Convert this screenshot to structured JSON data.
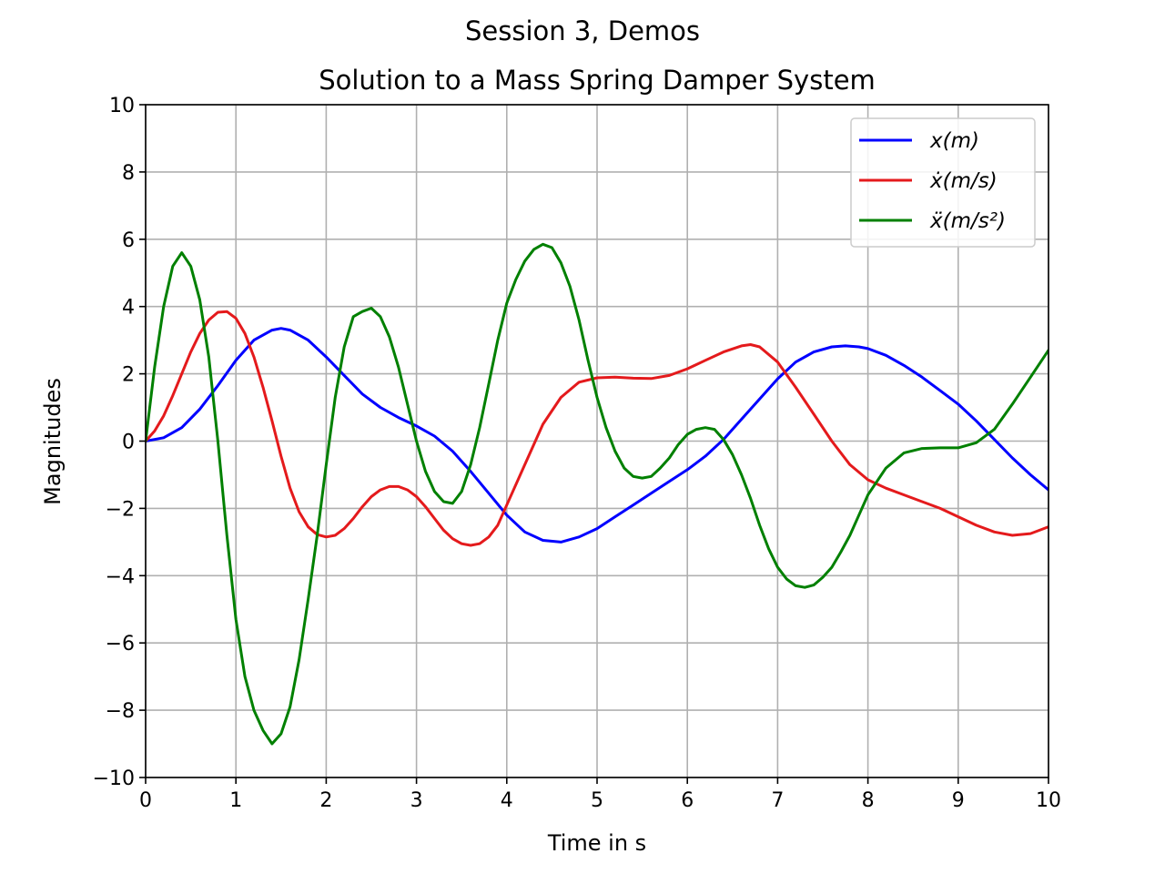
{
  "chart_data": {
    "type": "line",
    "suptitle": "Session 3, Demos",
    "title": "Solution to a Mass Spring Damper System",
    "xlabel": "Time in s",
    "ylabel": "Magnitudes",
    "xlim": [
      0,
      10
    ],
    "ylim": [
      -10,
      10
    ],
    "xticks": [
      0,
      1,
      2,
      3,
      4,
      5,
      6,
      7,
      8,
      9,
      10
    ],
    "yticks": [
      -10,
      -8,
      -6,
      -4,
      -2,
      0,
      2,
      4,
      6,
      8,
      10
    ],
    "xtick_labels": [
      "0",
      "1",
      "2",
      "3",
      "4",
      "5",
      "6",
      "7",
      "8",
      "9",
      "10"
    ],
    "ytick_labels": [
      "−10",
      "−8",
      "−6",
      "−4",
      "−2",
      "0",
      "2",
      "4",
      "6",
      "8",
      "10"
    ],
    "grid": true,
    "legend": {
      "position": "top-right"
    },
    "series": [
      {
        "name": "x(m)",
        "color": "#0000ff",
        "x": [
          0,
          0.2,
          0.4,
          0.6,
          0.8,
          1.0,
          1.2,
          1.4,
          1.5,
          1.6,
          1.8,
          2.0,
          2.2,
          2.4,
          2.6,
          2.8,
          3.0,
          3.2,
          3.4,
          3.6,
          3.8,
          4.0,
          4.2,
          4.4,
          4.6,
          4.8,
          5.0,
          5.2,
          5.4,
          5.6,
          5.8,
          6.0,
          6.2,
          6.4,
          6.6,
          6.8,
          7.0,
          7.2,
          7.4,
          7.6,
          7.75,
          7.9,
          8.0,
          8.2,
          8.4,
          8.6,
          8.8,
          9.0,
          9.2,
          9.4,
          9.6,
          9.8,
          10.0
        ],
        "y": [
          0,
          0.1,
          0.4,
          0.95,
          1.65,
          2.4,
          3.0,
          3.3,
          3.35,
          3.3,
          3.0,
          2.5,
          1.95,
          1.4,
          1.0,
          0.7,
          0.45,
          0.15,
          -0.3,
          -0.9,
          -1.55,
          -2.2,
          -2.7,
          -2.95,
          -3.0,
          -2.85,
          -2.6,
          -2.25,
          -1.9,
          -1.55,
          -1.2,
          -0.85,
          -0.45,
          0.05,
          0.65,
          1.25,
          1.85,
          2.35,
          2.65,
          2.8,
          2.83,
          2.8,
          2.75,
          2.55,
          2.25,
          1.9,
          1.5,
          1.1,
          0.6,
          0.05,
          -0.5,
          -1.0,
          -1.45
        ]
      },
      {
        "name": "ẋ(m/s)",
        "color": "#e41a1c",
        "x": [
          0,
          0.1,
          0.2,
          0.3,
          0.4,
          0.5,
          0.6,
          0.7,
          0.8,
          0.9,
          1.0,
          1.1,
          1.2,
          1.3,
          1.4,
          1.5,
          1.6,
          1.7,
          1.8,
          1.9,
          2.0,
          2.1,
          2.2,
          2.3,
          2.4,
          2.5,
          2.6,
          2.7,
          2.8,
          2.9,
          3.0,
          3.1,
          3.2,
          3.3,
          3.4,
          3.5,
          3.6,
          3.7,
          3.8,
          3.9,
          4.0,
          4.2,
          4.4,
          4.6,
          4.8,
          5.0,
          5.2,
          5.4,
          5.6,
          5.8,
          6.0,
          6.2,
          6.4,
          6.6,
          6.7,
          6.8,
          7.0,
          7.2,
          7.4,
          7.6,
          7.8,
          8.0,
          8.2,
          8.4,
          8.6,
          8.8,
          9.0,
          9.2,
          9.4,
          9.6,
          9.8,
          10.0
        ],
        "y": [
          0,
          0.3,
          0.75,
          1.35,
          2.0,
          2.65,
          3.2,
          3.6,
          3.83,
          3.85,
          3.65,
          3.2,
          2.5,
          1.6,
          0.6,
          -0.45,
          -1.4,
          -2.1,
          -2.55,
          -2.78,
          -2.85,
          -2.8,
          -2.6,
          -2.3,
          -1.95,
          -1.65,
          -1.45,
          -1.35,
          -1.35,
          -1.45,
          -1.65,
          -1.95,
          -2.3,
          -2.65,
          -2.9,
          -3.05,
          -3.1,
          -3.05,
          -2.85,
          -2.5,
          -1.9,
          -0.7,
          0.5,
          1.3,
          1.75,
          1.88,
          1.9,
          1.87,
          1.86,
          1.95,
          2.15,
          2.4,
          2.65,
          2.83,
          2.87,
          2.8,
          2.35,
          1.6,
          0.8,
          0.0,
          -0.7,
          -1.15,
          -1.4,
          -1.6,
          -1.8,
          -2.0,
          -2.25,
          -2.5,
          -2.7,
          -2.8,
          -2.75,
          -2.55
        ]
      },
      {
        "name": "ẍ(m/s²)",
        "color": "#008000",
        "x": [
          0,
          0.1,
          0.2,
          0.3,
          0.4,
          0.5,
          0.6,
          0.7,
          0.8,
          0.9,
          1.0,
          1.1,
          1.2,
          1.3,
          1.4,
          1.5,
          1.6,
          1.7,
          1.8,
          1.9,
          2.0,
          2.1,
          2.2,
          2.3,
          2.4,
          2.5,
          2.6,
          2.7,
          2.8,
          2.9,
          3.0,
          3.1,
          3.2,
          3.3,
          3.4,
          3.5,
          3.6,
          3.7,
          3.8,
          3.9,
          4.0,
          4.1,
          4.2,
          4.3,
          4.4,
          4.5,
          4.6,
          4.7,
          4.8,
          4.9,
          5.0,
          5.1,
          5.2,
          5.3,
          5.4,
          5.5,
          5.6,
          5.7,
          5.8,
          5.9,
          6.0,
          6.1,
          6.2,
          6.3,
          6.4,
          6.5,
          6.6,
          6.7,
          6.8,
          6.9,
          7.0,
          7.1,
          7.2,
          7.3,
          7.4,
          7.5,
          7.6,
          7.7,
          7.8,
          7.9,
          8.0,
          8.2,
          8.4,
          8.6,
          8.8,
          9.0,
          9.2,
          9.4,
          9.6,
          9.8,
          10.0
        ],
        "y": [
          0,
          2.2,
          4.0,
          5.2,
          5.6,
          5.2,
          4.2,
          2.5,
          0.0,
          -2.8,
          -5.3,
          -7.0,
          -8.0,
          -8.6,
          -9.0,
          -8.7,
          -7.9,
          -6.5,
          -4.7,
          -2.8,
          -0.7,
          1.3,
          2.8,
          3.7,
          3.85,
          3.95,
          3.7,
          3.1,
          2.2,
          1.1,
          0.0,
          -0.9,
          -1.5,
          -1.8,
          -1.85,
          -1.5,
          -0.7,
          0.4,
          1.7,
          3.0,
          4.1,
          4.8,
          5.35,
          5.7,
          5.85,
          5.75,
          5.3,
          4.6,
          3.6,
          2.4,
          1.3,
          0.4,
          -0.3,
          -0.8,
          -1.05,
          -1.1,
          -1.05,
          -0.8,
          -0.5,
          -0.1,
          0.2,
          0.35,
          0.4,
          0.35,
          0.05,
          -0.4,
          -1.0,
          -1.7,
          -2.5,
          -3.2,
          -3.75,
          -4.1,
          -4.3,
          -4.35,
          -4.28,
          -4.05,
          -3.75,
          -3.3,
          -2.8,
          -2.2,
          -1.6,
          -0.8,
          -0.35,
          -0.22,
          -0.2,
          -0.2,
          -0.05,
          0.35,
          1.1,
          1.9,
          2.7
        ]
      }
    ]
  }
}
